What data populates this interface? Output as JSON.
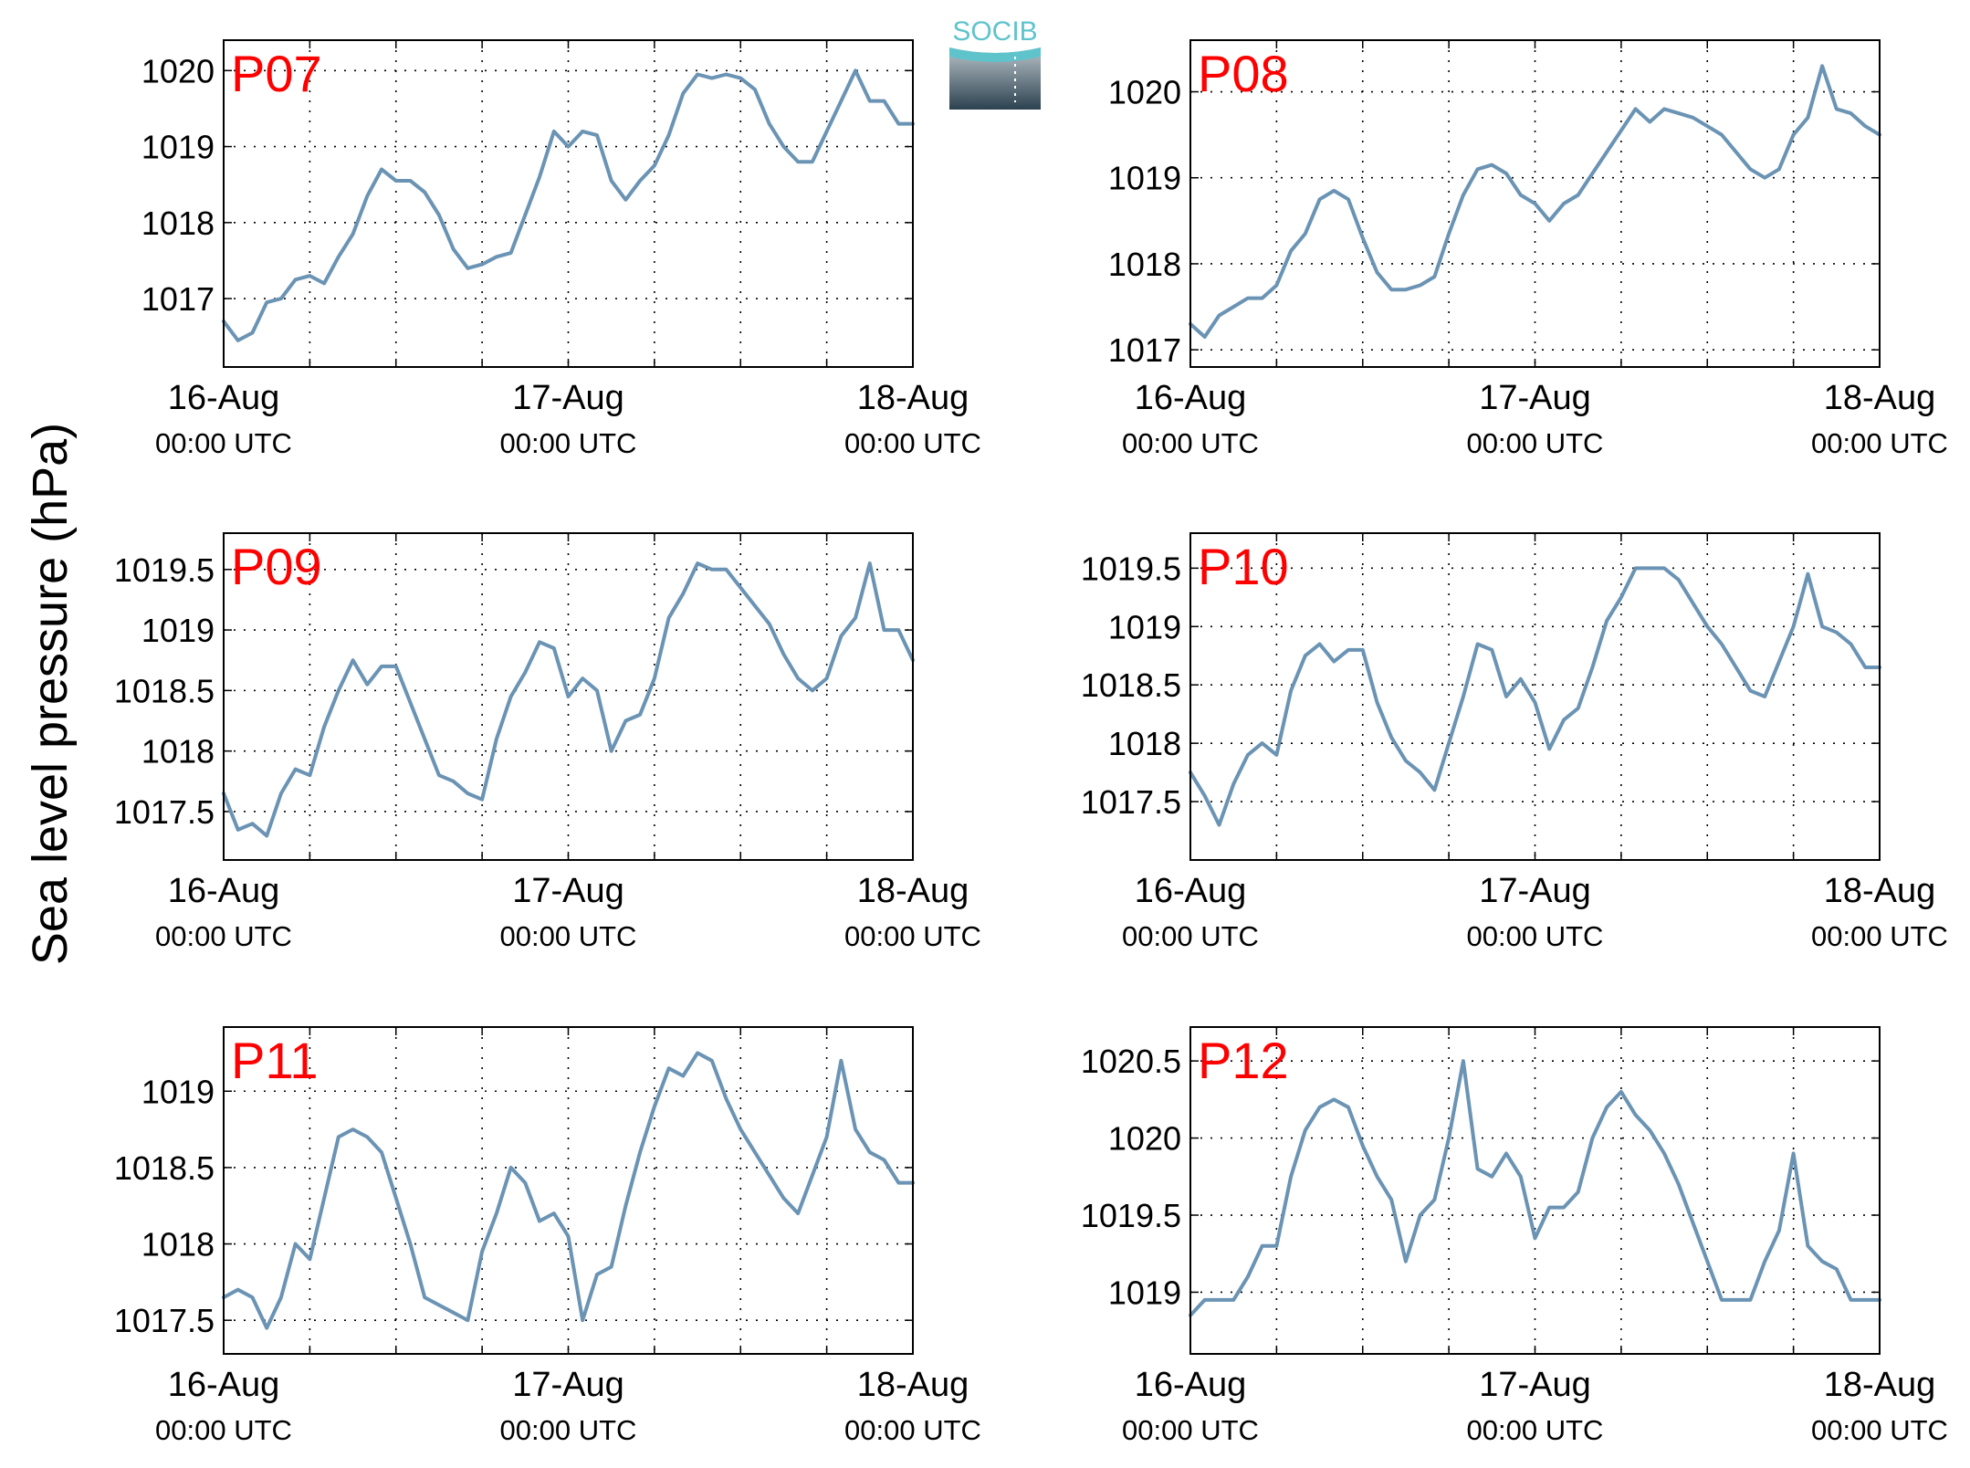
{
  "figure": {
    "ylabel": "Sea level pressure (hPa)",
    "logo_text": "SOCIB",
    "line_color": "#6a93b4",
    "label_color": "#ff0000"
  },
  "chart_data": [
    {
      "type": "line",
      "title": "P07",
      "xticks": [
        {
          "line1": "16-Aug",
          "line2": "00:00 UTC"
        },
        {
          "line1": "17-Aug",
          "line2": "00:00 UTC"
        },
        {
          "line1": "18-Aug",
          "line2": "00:00 UTC"
        }
      ],
      "yticks": [
        {
          "v": 1017,
          "label": "1017"
        },
        {
          "v": 1018,
          "label": "1018"
        },
        {
          "v": 1019,
          "label": "1019"
        },
        {
          "v": 1020,
          "label": "1020"
        }
      ],
      "ylim": [
        1016.1,
        1020.4
      ],
      "x_hours": [
        0,
        1,
        2,
        3,
        4,
        5,
        6,
        7,
        8,
        9,
        10,
        11,
        12,
        13,
        14,
        15,
        16,
        17,
        18,
        19,
        20,
        21,
        22,
        23,
        24,
        25,
        26,
        27,
        28,
        29,
        30,
        31,
        32,
        33,
        34,
        35,
        36,
        37,
        38,
        39,
        40,
        41,
        42,
        43,
        44,
        45,
        46,
        47,
        48
      ],
      "y": [
        1016.7,
        1016.45,
        1016.55,
        1016.95,
        1017.0,
        1017.25,
        1017.3,
        1017.2,
        1017.55,
        1017.85,
        1018.35,
        1018.7,
        1018.55,
        1018.55,
        1018.4,
        1018.1,
        1017.65,
        1017.4,
        1017.45,
        1017.55,
        1017.6,
        1018.1,
        1018.6,
        1019.2,
        1019.0,
        1019.2,
        1019.15,
        1018.55,
        1018.3,
        1018.55,
        1018.75,
        1019.15,
        1019.7,
        1019.95,
        1019.9,
        1019.95,
        1019.9,
        1019.75,
        1019.3,
        1019.0,
        1018.8,
        1018.8,
        1019.2,
        1019.6,
        1020.0,
        1019.6,
        1019.6,
        1019.3,
        1019.3
      ]
    },
    {
      "type": "line",
      "title": "P08",
      "xticks": [
        {
          "line1": "16-Aug",
          "line2": "00:00 UTC"
        },
        {
          "line1": "17-Aug",
          "line2": "00:00 UTC"
        },
        {
          "line1": "18-Aug",
          "line2": "00:00 UTC"
        }
      ],
      "yticks": [
        {
          "v": 1017,
          "label": "1017"
        },
        {
          "v": 1018,
          "label": "1018"
        },
        {
          "v": 1019,
          "label": "1019"
        },
        {
          "v": 1020,
          "label": "1020"
        }
      ],
      "ylim": [
        1016.8,
        1020.6
      ],
      "x_hours": [
        0,
        1,
        2,
        3,
        4,
        5,
        6,
        7,
        8,
        9,
        10,
        11,
        12,
        13,
        14,
        15,
        16,
        17,
        18,
        19,
        20,
        21,
        22,
        23,
        24,
        25,
        26,
        27,
        28,
        29,
        30,
        31,
        32,
        33,
        34,
        35,
        36,
        37,
        38,
        39,
        40,
        41,
        42,
        43,
        44,
        45,
        46,
        47,
        48
      ],
      "y": [
        1017.3,
        1017.15,
        1017.4,
        1017.5,
        1017.6,
        1017.6,
        1017.75,
        1018.15,
        1018.35,
        1018.75,
        1018.85,
        1018.75,
        1018.3,
        1017.9,
        1017.7,
        1017.7,
        1017.75,
        1017.85,
        1018.35,
        1018.8,
        1019.1,
        1019.15,
        1019.05,
        1018.8,
        1018.7,
        1018.5,
        1018.7,
        1018.8,
        1019.05,
        1019.3,
        1019.55,
        1019.8,
        1019.65,
        1019.8,
        1019.75,
        1019.7,
        1019.6,
        1019.5,
        1019.3,
        1019.1,
        1019.0,
        1019.1,
        1019.5,
        1019.7,
        1020.3,
        1019.8,
        1019.75,
        1019.6,
        1019.5
      ]
    },
    {
      "type": "line",
      "title": "P09",
      "xticks": [
        {
          "line1": "16-Aug",
          "line2": "00:00 UTC"
        },
        {
          "line1": "17-Aug",
          "line2": "00:00 UTC"
        },
        {
          "line1": "18-Aug",
          "line2": "00:00 UTC"
        }
      ],
      "yticks": [
        {
          "v": 1017.5,
          "label": "1017.5"
        },
        {
          "v": 1018,
          "label": "1018"
        },
        {
          "v": 1018.5,
          "label": "1018.5"
        },
        {
          "v": 1019,
          "label": "1019"
        },
        {
          "v": 1019.5,
          "label": "1019.5"
        }
      ],
      "ylim": [
        1017.1,
        1019.8
      ],
      "x_hours": [
        0,
        1,
        2,
        3,
        4,
        5,
        6,
        7,
        8,
        9,
        10,
        11,
        12,
        13,
        14,
        15,
        16,
        17,
        18,
        19,
        20,
        21,
        22,
        23,
        24,
        25,
        26,
        27,
        28,
        29,
        30,
        31,
        32,
        33,
        34,
        35,
        36,
        37,
        38,
        39,
        40,
        41,
        42,
        43,
        44,
        45,
        46,
        47,
        48
      ],
      "y": [
        1017.65,
        1017.35,
        1017.4,
        1017.3,
        1017.65,
        1017.85,
        1017.8,
        1018.2,
        1018.5,
        1018.75,
        1018.55,
        1018.7,
        1018.7,
        1018.4,
        1018.1,
        1017.8,
        1017.75,
        1017.65,
        1017.6,
        1018.1,
        1018.45,
        1018.65,
        1018.9,
        1018.85,
        1018.45,
        1018.6,
        1018.5,
        1018.0,
        1018.25,
        1018.3,
        1018.6,
        1019.1,
        1019.3,
        1019.55,
        1019.5,
        1019.5,
        1019.35,
        1019.2,
        1019.05,
        1018.8,
        1018.6,
        1018.5,
        1018.6,
        1018.95,
        1019.1,
        1019.55,
        1019.0,
        1019.0,
        1018.75
      ]
    },
    {
      "type": "line",
      "title": "P10",
      "xticks": [
        {
          "line1": "16-Aug",
          "line2": "00:00 UTC"
        },
        {
          "line1": "17-Aug",
          "line2": "00:00 UTC"
        },
        {
          "line1": "18-Aug",
          "line2": "00:00 UTC"
        }
      ],
      "yticks": [
        {
          "v": 1017.5,
          "label": "1017.5"
        },
        {
          "v": 1018,
          "label": "1018"
        },
        {
          "v": 1018.5,
          "label": "1018.5"
        },
        {
          "v": 1019,
          "label": "1019"
        },
        {
          "v": 1019.5,
          "label": "1019.5"
        }
      ],
      "ylim": [
        1017.0,
        1019.8
      ],
      "x_hours": [
        0,
        1,
        2,
        3,
        4,
        5,
        6,
        7,
        8,
        9,
        10,
        11,
        12,
        13,
        14,
        15,
        16,
        17,
        18,
        19,
        20,
        21,
        22,
        23,
        24,
        25,
        26,
        27,
        28,
        29,
        30,
        31,
        32,
        33,
        34,
        35,
        36,
        37,
        38,
        39,
        40,
        41,
        42,
        43,
        44,
        45,
        46,
        47,
        48
      ],
      "y": [
        1017.75,
        1017.55,
        1017.3,
        1017.65,
        1017.9,
        1018.0,
        1017.9,
        1018.45,
        1018.75,
        1018.85,
        1018.7,
        1018.8,
        1018.8,
        1018.35,
        1018.05,
        1017.85,
        1017.75,
        1017.6,
        1018.0,
        1018.4,
        1018.85,
        1018.8,
        1018.4,
        1018.55,
        1018.35,
        1017.95,
        1018.2,
        1018.3,
        1018.65,
        1019.05,
        1019.25,
        1019.5,
        1019.5,
        1019.5,
        1019.4,
        1019.2,
        1019.0,
        1018.85,
        1018.65,
        1018.45,
        1018.4,
        1018.7,
        1019.0,
        1019.45,
        1019.0,
        1018.95,
        1018.85,
        1018.65,
        1018.65
      ]
    },
    {
      "type": "line",
      "title": "P11",
      "xticks": [
        {
          "line1": "16-Aug",
          "line2": "00:00 UTC"
        },
        {
          "line1": "17-Aug",
          "line2": "00:00 UTC"
        },
        {
          "line1": "18-Aug",
          "line2": "00:00 UTC"
        }
      ],
      "yticks": [
        {
          "v": 1017.5,
          "label": "1017.5"
        },
        {
          "v": 1018,
          "label": "1018"
        },
        {
          "v": 1018.5,
          "label": "1018.5"
        },
        {
          "v": 1019,
          "label": "1019"
        }
      ],
      "ylim": [
        1017.28,
        1019.42
      ],
      "x_hours": [
        0,
        1,
        2,
        3,
        4,
        5,
        6,
        7,
        8,
        9,
        10,
        11,
        12,
        13,
        14,
        15,
        16,
        17,
        18,
        19,
        20,
        21,
        22,
        23,
        24,
        25,
        26,
        27,
        28,
        29,
        30,
        31,
        32,
        33,
        34,
        35,
        36,
        37,
        38,
        39,
        40,
        41,
        42,
        43,
        44,
        45,
        46,
        47,
        48
      ],
      "y": [
        1017.65,
        1017.7,
        1017.65,
        1017.45,
        1017.65,
        1018.0,
        1017.9,
        1018.3,
        1018.7,
        1018.75,
        1018.7,
        1018.6,
        1018.3,
        1018.0,
        1017.65,
        1017.6,
        1017.55,
        1017.5,
        1017.95,
        1018.2,
        1018.5,
        1018.4,
        1018.15,
        1018.2,
        1018.05,
        1017.5,
        1017.8,
        1017.85,
        1018.25,
        1018.6,
        1018.9,
        1019.15,
        1019.1,
        1019.25,
        1019.2,
        1018.95,
        1018.75,
        1018.6,
        1018.45,
        1018.3,
        1018.2,
        1018.45,
        1018.7,
        1019.2,
        1018.75,
        1018.6,
        1018.55,
        1018.4,
        1018.4
      ]
    },
    {
      "type": "line",
      "title": "P12",
      "xticks": [
        {
          "line1": "16-Aug",
          "line2": "00:00 UTC"
        },
        {
          "line1": "17-Aug",
          "line2": "00:00 UTC"
        },
        {
          "line1": "18-Aug",
          "line2": "00:00 UTC"
        }
      ],
      "yticks": [
        {
          "v": 1019,
          "label": "1019"
        },
        {
          "v": 1019.5,
          "label": "1019.5"
        },
        {
          "v": 1020,
          "label": "1020"
        },
        {
          "v": 1020.5,
          "label": "1020.5"
        }
      ],
      "ylim": [
        1018.6,
        1020.72
      ],
      "x_hours": [
        0,
        1,
        2,
        3,
        4,
        5,
        6,
        7,
        8,
        9,
        10,
        11,
        12,
        13,
        14,
        15,
        16,
        17,
        18,
        19,
        20,
        21,
        22,
        23,
        24,
        25,
        26,
        27,
        28,
        29,
        30,
        31,
        32,
        33,
        34,
        35,
        36,
        37,
        38,
        39,
        40,
        41,
        42,
        43,
        44,
        45,
        46,
        47,
        48
      ],
      "y": [
        1018.85,
        1018.95,
        1018.95,
        1018.95,
        1019.1,
        1019.3,
        1019.3,
        1019.75,
        1020.05,
        1020.2,
        1020.25,
        1020.2,
        1019.95,
        1019.75,
        1019.6,
        1019.2,
        1019.5,
        1019.6,
        1020.0,
        1020.5,
        1019.8,
        1019.75,
        1019.9,
        1019.75,
        1019.35,
        1019.55,
        1019.55,
        1019.65,
        1020.0,
        1020.2,
        1020.3,
        1020.15,
        1020.05,
        1019.9,
        1019.7,
        1019.45,
        1019.2,
        1018.95,
        1018.95,
        1018.95,
        1019.2,
        1019.4,
        1019.9,
        1019.3,
        1019.2,
        1019.15,
        1018.95,
        1018.95,
        1018.95
      ]
    }
  ]
}
